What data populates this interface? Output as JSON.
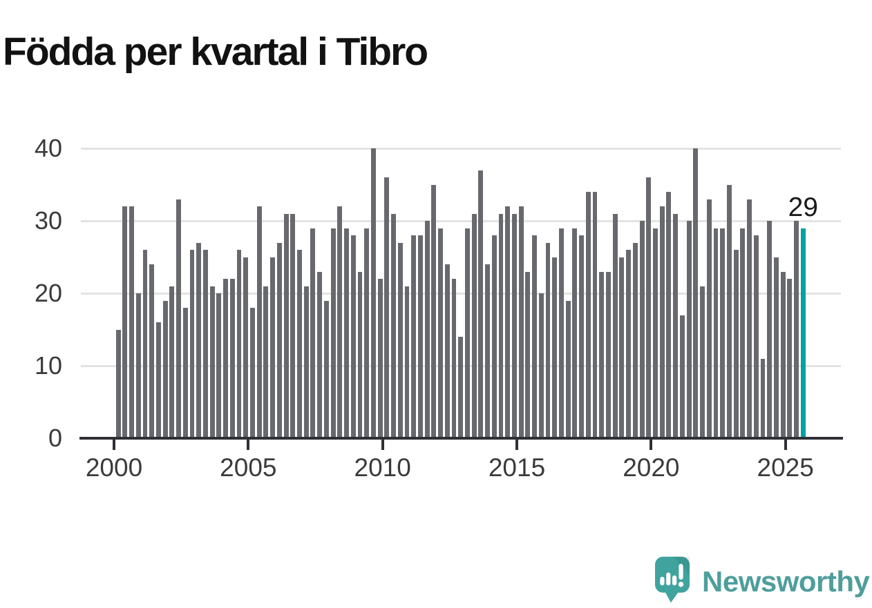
{
  "title": "Födda per kvartal i Tibro",
  "chart_data": {
    "type": "bar",
    "title": "Födda per kvartal i Tibro",
    "x_start": "2000 Q1",
    "x_end": "2025 Q3",
    "x_tick_labels": [
      "2000",
      "2005",
      "2010",
      "2015",
      "2020",
      "2025"
    ],
    "y_tick_labels": [
      "0",
      "10",
      "20",
      "30",
      "40"
    ],
    "ylim": [
      0,
      40
    ],
    "grid": true,
    "legend_position": "none",
    "bar_color": "#68696e",
    "highlight_color": "#00a2a1",
    "values": [
      15,
      32,
      32,
      20,
      26,
      24,
      16,
      19,
      21,
      33,
      18,
      26,
      27,
      26,
      21,
      20,
      22,
      22,
      26,
      25,
      18,
      32,
      21,
      25,
      27,
      31,
      31,
      26,
      21,
      29,
      23,
      19,
      29,
      32,
      29,
      28,
      23,
      29,
      40,
      22,
      36,
      31,
      27,
      21,
      28,
      28,
      30,
      35,
      29,
      24,
      22,
      14,
      29,
      31,
      37,
      24,
      28,
      31,
      32,
      31,
      32,
      23,
      28,
      20,
      27,
      25,
      29,
      19,
      29,
      28,
      34,
      34,
      23,
      23,
      31,
      25,
      26,
      27,
      30,
      36,
      29,
      32,
      34,
      31,
      17,
      30,
      40,
      21,
      33,
      29,
      29,
      35,
      26,
      29,
      33,
      28,
      11,
      30,
      25,
      23,
      22,
      30,
      29
    ],
    "highlight_index": 102,
    "highlight_label": "29"
  },
  "annotation": {
    "last_value": "29"
  },
  "footer": {
    "brand": "Newsworthy"
  }
}
